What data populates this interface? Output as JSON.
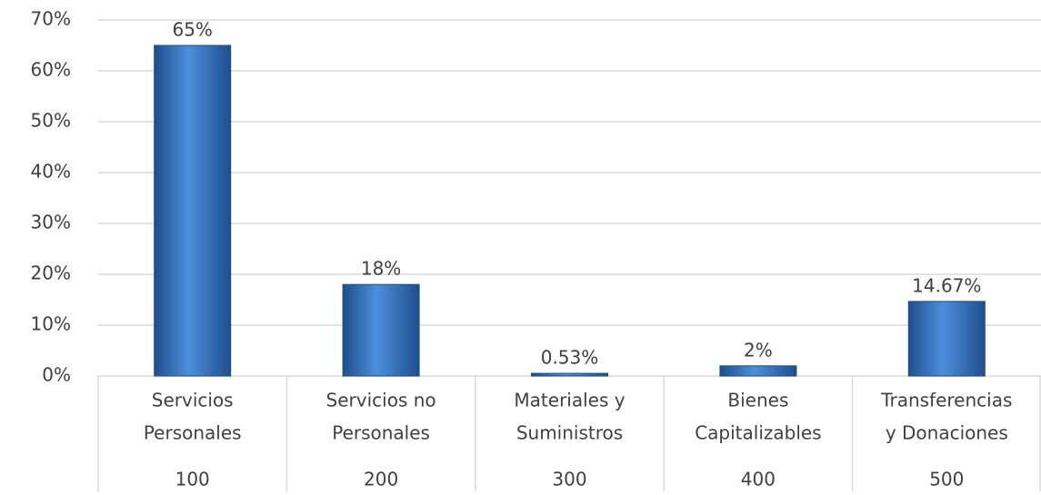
{
  "chart_data": {
    "type": "bar",
    "categories": [
      [
        "Servicios",
        "Personales"
      ],
      [
        "Servicios no",
        "Personales"
      ],
      [
        "Materiales y",
        "Suministros"
      ],
      [
        "Bienes",
        "Capitalizables"
      ],
      [
        "Transferencias",
        "y Donaciones"
      ]
    ],
    "groups": [
      "100",
      "200",
      "300",
      "400",
      "500"
    ],
    "values": [
      65,
      18,
      0.53,
      2,
      14.67
    ],
    "value_labels": [
      "65%",
      "18%",
      "0.53%",
      "2%",
      "14.67%"
    ],
    "color": "#3f7fcf",
    "ylim": [
      0,
      70
    ],
    "yticks": [
      {
        "value": 0,
        "label": "0%"
      },
      {
        "value": 10,
        "label": "10%"
      },
      {
        "value": 20,
        "label": "20%"
      },
      {
        "value": 30,
        "label": "30%"
      },
      {
        "value": 40,
        "label": "40%"
      },
      {
        "value": 50,
        "label": "50%"
      },
      {
        "value": 60,
        "label": "60%"
      },
      {
        "value": 70,
        "label": "70%"
      }
    ],
    "grid": true
  }
}
